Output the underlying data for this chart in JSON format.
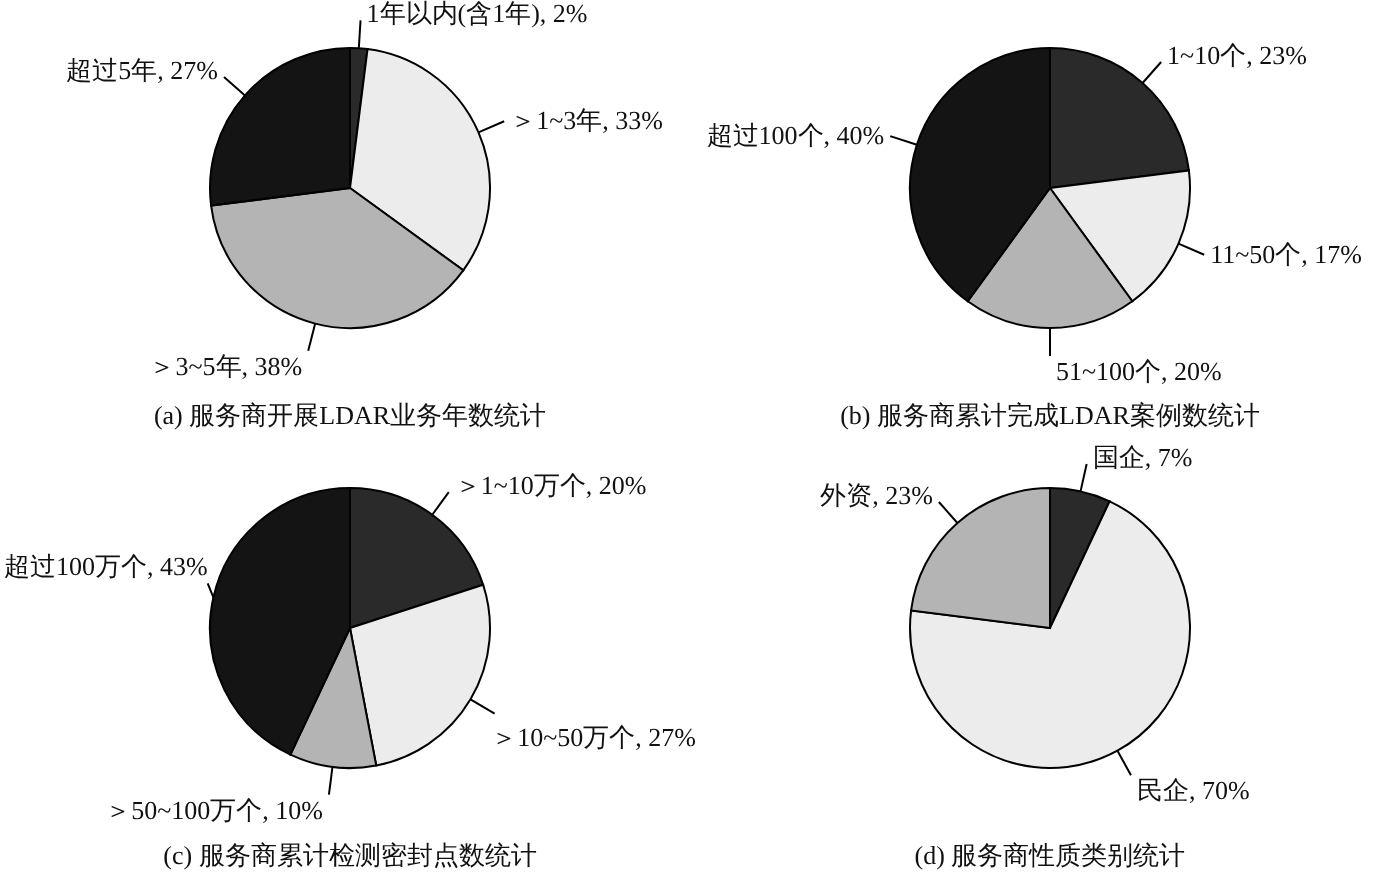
{
  "chart_data": [
    {
      "type": "pie",
      "title": "(a) 服务商开展LDAR业务年数统计",
      "categories": [
        "1年以内(含1年)",
        "＞1~3年",
        "＞3~5年",
        "超过5年"
      ],
      "values": [
        2,
        33,
        38,
        27
      ],
      "value_labels": [
        "2%",
        "33%",
        "38%",
        "27%"
      ],
      "colors": [
        "#2a2a2a",
        "#ececec",
        "#b4b4b4",
        "#141414"
      ]
    },
    {
      "type": "pie",
      "title": "(b) 服务商累计完成LDAR案例数统计",
      "categories": [
        "1~10个",
        "11~50个",
        "51~100个",
        "超过100个"
      ],
      "values": [
        23,
        17,
        20,
        40
      ],
      "value_labels": [
        "23%",
        "17%",
        "20%",
        "40%"
      ],
      "colors": [
        "#2a2a2a",
        "#ececec",
        "#b4b4b4",
        "#141414"
      ]
    },
    {
      "type": "pie",
      "title": "(c) 服务商累计检测密封点数统计",
      "categories": [
        "＞1~10万个",
        "＞10~50万个",
        "＞50~100万个",
        "超过100万个"
      ],
      "values": [
        20,
        27,
        10,
        43
      ],
      "value_labels": [
        "20%",
        "27%",
        "10%",
        "43%"
      ],
      "colors": [
        "#2a2a2a",
        "#ececec",
        "#b4b4b4",
        "#141414"
      ]
    },
    {
      "type": "pie",
      "title": "(d) 服务商性质类别统计",
      "categories": [
        "国企",
        "民企",
        "外资"
      ],
      "values": [
        7,
        70,
        23
      ],
      "value_labels": [
        "7%",
        "70%",
        "23%"
      ],
      "colors": [
        "#2a2a2a",
        "#ececec",
        "#b4b4b4"
      ]
    }
  ]
}
